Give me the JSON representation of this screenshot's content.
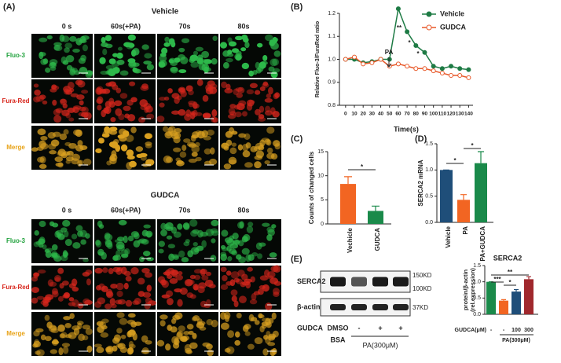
{
  "figure": {
    "labels": [
      "(A)",
      "(B)",
      "(C)",
      "(D)",
      "(E)"
    ],
    "panel_a": {
      "groups": [
        {
          "title": "Vehicle",
          "columns": [
            "0 s",
            "60s(+PA)",
            "70s",
            "80s"
          ],
          "rows": [
            "Fluo-3",
            "Fura-Red",
            "Merge"
          ]
        },
        {
          "title": "GUDCA",
          "columns": [
            "0 s",
            "60s(+PA)",
            "70s",
            "80s"
          ],
          "rows": [
            "Fluo-3",
            "Fura-Red",
            "Merge"
          ]
        }
      ]
    },
    "blot": {
      "bands": [
        "SERCA2",
        "β-actin"
      ],
      "sizes": [
        "150KD",
        "100KD",
        "37KD"
      ],
      "treatment": "GUDCA",
      "lanes": [
        "DMSO",
        "-",
        "+",
        "+"
      ],
      "vehicle": "BSA",
      "group": "PA(300μM)"
    }
  },
  "chart_data": [
    {
      "type": "line",
      "xlabel": "Time(s)",
      "ylabel": "Relative Fluo-3/FuraRed ratio",
      "x": [
        0,
        10,
        20,
        30,
        40,
        50,
        60,
        70,
        80,
        90,
        100,
        110,
        120,
        130,
        140
      ],
      "series": [
        {
          "name": "Vehicle",
          "color": "#1e7b45",
          "values": [
            1.0,
            1.0,
            0.985,
            0.99,
            1.0,
            1.0,
            1.22,
            1.12,
            1.06,
            1.03,
            0.97,
            0.96,
            0.97,
            0.96,
            0.955
          ]
        },
        {
          "name": "GUDCA",
          "color": "#e8592a",
          "values": [
            1.0,
            1.01,
            0.98,
            0.985,
            1.0,
            0.97,
            0.98,
            0.97,
            0.96,
            0.96,
            0.95,
            0.94,
            0.93,
            0.93,
            0.92
          ]
        }
      ],
      "xlim": [
        -7,
        145
      ],
      "xticks": [
        0,
        10,
        20,
        30,
        40,
        50,
        60,
        70,
        80,
        90,
        100,
        110,
        120,
        130,
        140
      ],
      "ylim": [
        0.8,
        1.2
      ],
      "yticks": [
        0.8,
        0.9,
        {
          "value": 1.0,
          "label": "1.0"
        },
        1.1,
        1.2
      ],
      "legend": "top-right",
      "annotations": [
        "PA",
        "**",
        "*",
        "*"
      ]
    },
    {
      "type": "bar",
      "ylabel": "Counts of changed cells",
      "categories": [
        "Vechicle",
        "GUDCA"
      ],
      "values": [
        8.3,
        2.7
      ],
      "errors": [
        1.5,
        1.0
      ],
      "colors": [
        "#f26522",
        "#1a8a4a"
      ],
      "ylim": [
        0,
        15
      ],
      "yticks": [
        0,
        5,
        10,
        15
      ],
      "annotations": [
        "*"
      ]
    },
    {
      "type": "bar",
      "ylabel": "SERCA2 mRNA",
      "categories": [
        "Vehicle",
        "PA",
        "PA+GUDCA"
      ],
      "values": [
        1.0,
        0.43,
        1.13
      ],
      "errors": [
        0,
        0.1,
        0.22
      ],
      "colors": [
        "#1f4e79",
        "#f26522",
        "#1a8a4a"
      ],
      "ylim": [
        0,
        1.5
      ],
      "yticks": [
        {
          "value": 0,
          "label": "0.0"
        },
        0.5,
        {
          "value": 1.0,
          "label": "1.0"
        },
        1.5
      ],
      "annotations": [
        "*",
        "*"
      ]
    },
    {
      "type": "bar",
      "title": "SERCA2",
      "ylabel": [
        "protein/β-actin",
        "(rel.expression)"
      ],
      "xlabel": "GUDCA(μM)",
      "group_label": "PA(300μM)",
      "categories": [
        "-",
        "-",
        "100",
        "300"
      ],
      "values": [
        1.0,
        0.42,
        0.7,
        1.08
      ],
      "errors": [
        0,
        0.03,
        0.06,
        0.08
      ],
      "colors": [
        "#1a8a4a",
        "#f26522",
        "#1f4e79",
        "#a0282d"
      ],
      "ylim": [
        0,
        1.5
      ],
      "yticks": [
        {
          "value": 0,
          "label": "0.0"
        },
        0.5,
        {
          "value": 1.0,
          "label": "1.0"
        },
        1.5
      ],
      "annotations": [
        "***",
        "*",
        "**"
      ]
    }
  ]
}
